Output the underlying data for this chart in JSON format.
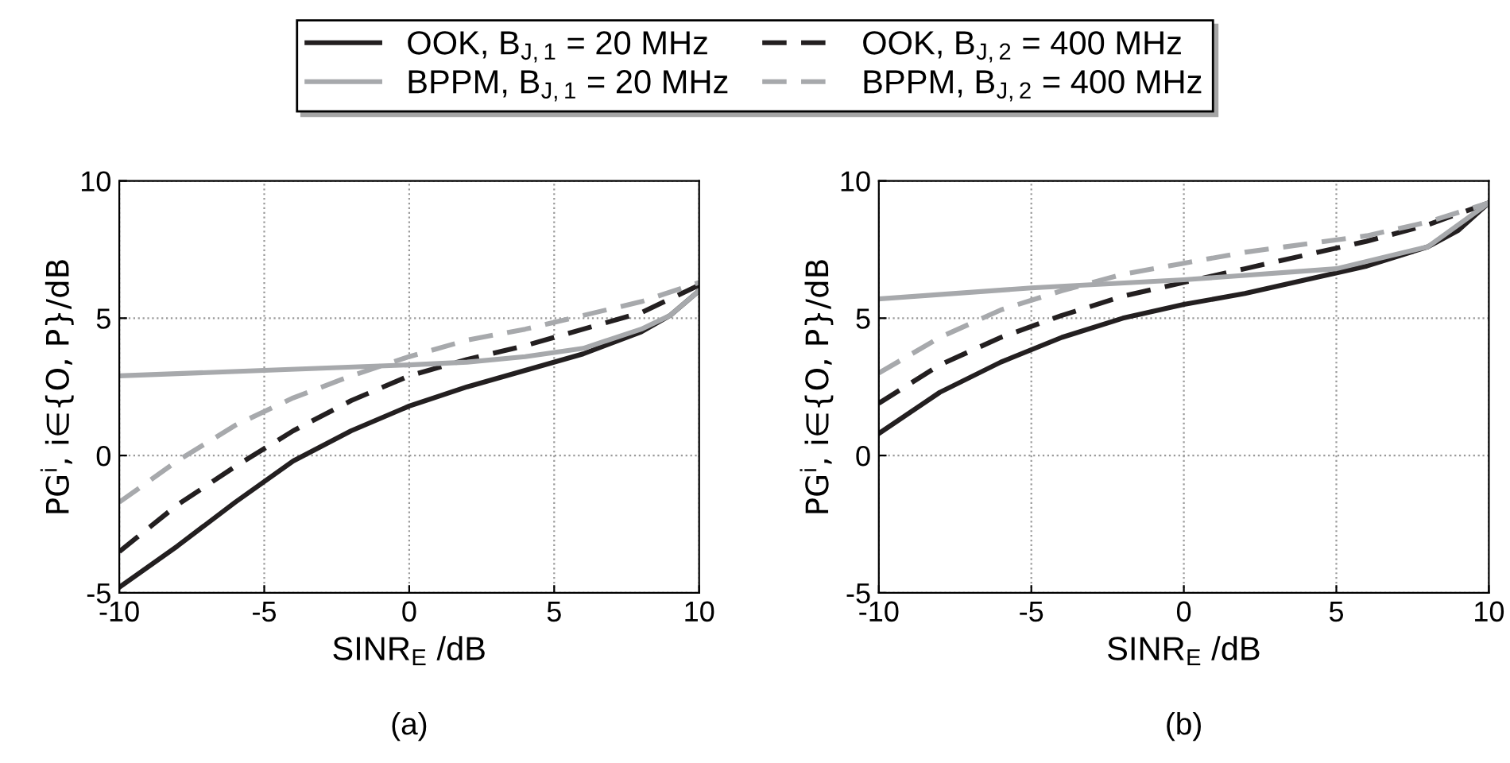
{
  "chart_data": [
    {
      "type": "line",
      "xlabel": "SINR$_{E}$ /dB",
      "ylabel": "PG$^{i}$, i∈{O, P}/dB",
      "annotations": [
        "(a)"
      ],
      "xlim": [
        -10,
        10
      ],
      "ylim": [
        -5,
        10
      ],
      "xticks": [
        -10,
        -5,
        0,
        5,
        10
      ],
      "yticks": [
        -5,
        0,
        5,
        10
      ],
      "grid": true,
      "legend": "top",
      "marker": "none",
      "series": [
        {
          "name": "OOK, B$_{J,1}$ = 20 MHz",
          "color": "#231f20",
          "line_style": "solid",
          "x": [
            -10,
            -8,
            -6,
            -4,
            -2,
            0,
            2,
            4,
            6,
            8,
            9,
            10
          ],
          "values": [
            -4.8,
            -3.3,
            -1.7,
            -0.2,
            0.9,
            1.8,
            2.5,
            3.1,
            3.7,
            4.5,
            5.1,
            6.0
          ]
        },
        {
          "name": "OOK, B$_{J,2}$ = 400 MHz",
          "color": "#231f20",
          "line_style": "dashed",
          "x": [
            -10,
            -8,
            -6,
            -4,
            -2,
            0,
            2,
            4,
            6,
            8,
            10
          ],
          "values": [
            -3.5,
            -1.8,
            -0.4,
            0.9,
            2.0,
            2.9,
            3.5,
            4.0,
            4.6,
            5.2,
            6.2
          ]
        },
        {
          "name": "BPPM, B$_{J,1}$ = 20 MHz",
          "color": "#a7a9ac",
          "line_style": "solid",
          "x": [
            -10,
            -5,
            0,
            2,
            4,
            6,
            8,
            9,
            10
          ],
          "values": [
            2.9,
            3.1,
            3.3,
            3.4,
            3.6,
            3.9,
            4.6,
            5.1,
            6.0
          ]
        },
        {
          "name": "BPPM, B$_{J,2}$ = 400 MHz",
          "color": "#a7a9ac",
          "line_style": "dashed",
          "x": [
            -10,
            -8,
            -6,
            -4,
            -2,
            0,
            2,
            4,
            6,
            8,
            10
          ],
          "values": [
            -1.7,
            -0.2,
            1.1,
            2.1,
            2.9,
            3.6,
            4.2,
            4.6,
            5.1,
            5.6,
            6.3
          ]
        }
      ]
    },
    {
      "type": "line",
      "xlabel": "SINR$_{E}$ /dB",
      "ylabel": "PG$^{i}$, i∈{O, P}/dB",
      "annotations": [
        "(b)"
      ],
      "xlim": [
        -10,
        10
      ],
      "ylim": [
        -5,
        10
      ],
      "xticks": [
        -10,
        -5,
        0,
        5,
        10
      ],
      "yticks": [
        -5,
        0,
        5,
        10
      ],
      "grid": true,
      "marker": "none",
      "series": [
        {
          "color": "#231f20",
          "line_style": "solid",
          "x": [
            -10,
            -8,
            -6,
            -4,
            -2,
            0,
            2,
            4,
            6,
            8,
            9,
            10
          ],
          "values": [
            0.8,
            2.3,
            3.4,
            4.3,
            5.0,
            5.5,
            5.9,
            6.4,
            6.9,
            7.6,
            8.2,
            9.2
          ]
        },
        {
          "color": "#231f20",
          "line_style": "dashed",
          "x": [
            -10,
            -8,
            -6,
            -4,
            -2,
            0,
            2,
            4,
            6,
            8,
            10
          ],
          "values": [
            1.9,
            3.3,
            4.3,
            5.1,
            5.8,
            6.3,
            6.8,
            7.3,
            7.8,
            8.4,
            9.2
          ]
        },
        {
          "color": "#a7a9ac",
          "line_style": "solid",
          "x": [
            -10,
            -5,
            0,
            5,
            8,
            10
          ],
          "values": [
            5.7,
            6.1,
            6.4,
            6.8,
            7.6,
            9.2
          ]
        },
        {
          "color": "#a7a9ac",
          "line_style": "dashed",
          "x": [
            -10,
            -8,
            -6,
            -4,
            -2,
            0,
            2,
            4,
            6,
            8,
            10
          ],
          "values": [
            3.0,
            4.3,
            5.3,
            6.0,
            6.6,
            7.0,
            7.4,
            7.7,
            8.0,
            8.5,
            9.2
          ]
        }
      ]
    }
  ]
}
